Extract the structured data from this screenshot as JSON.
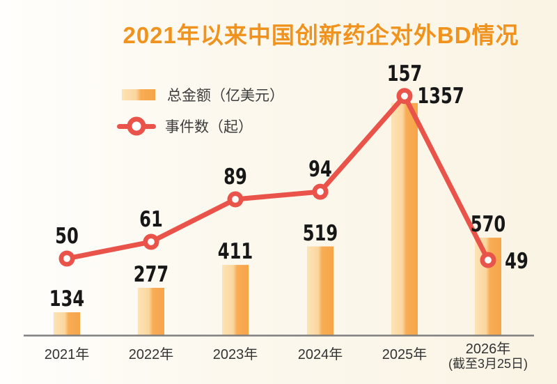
{
  "title": "2021年以来中国创新药企对外BD情况",
  "legend": {
    "items": [
      {
        "label": "总金额（亿美元）",
        "series": "bar"
      },
      {
        "label": "事件数（起）",
        "series": "line"
      }
    ]
  },
  "colors": {
    "title": "#f0921e",
    "bar_gradient": [
      "#fde3b6",
      "#fbd69e",
      "#f8ad56",
      "#f7a448"
    ],
    "line": "#e9534a",
    "marker_center": "#ffffff",
    "value_label": "#171717",
    "axis": "#7f7f7f",
    "tick_label": "#333333",
    "legend_text": "#3c3c3c",
    "background_left": "#fffefc",
    "background_right": "#faf4e4"
  },
  "chart_data": {
    "type": "bar",
    "subtype": "bar-line-combo",
    "title": "2021年以来中国创新药企对外BD情况",
    "categories": [
      "2021年",
      "2022年",
      "2023年",
      "2024年",
      "2025年",
      "2026年（截至3月25日）"
    ],
    "x_tick_lines": [
      [
        "2021年"
      ],
      [
        "2022年"
      ],
      [
        "2023年"
      ],
      [
        "2024年"
      ],
      [
        "2025年"
      ],
      [
        "2026年",
        "(截至3月25日)"
      ]
    ],
    "series": [
      {
        "name": "总金额（亿美元）",
        "type": "bar",
        "values": [
          134,
          277,
          411,
          519,
          1357,
          570
        ]
      },
      {
        "name": "事件数（起）",
        "type": "line",
        "values": [
          50,
          61,
          89,
          94,
          157,
          49
        ]
      }
    ],
    "data_labels": true,
    "grid": false,
    "legend_position": "top-left",
    "y_axis_visible": false,
    "x_axis_line": true
  }
}
